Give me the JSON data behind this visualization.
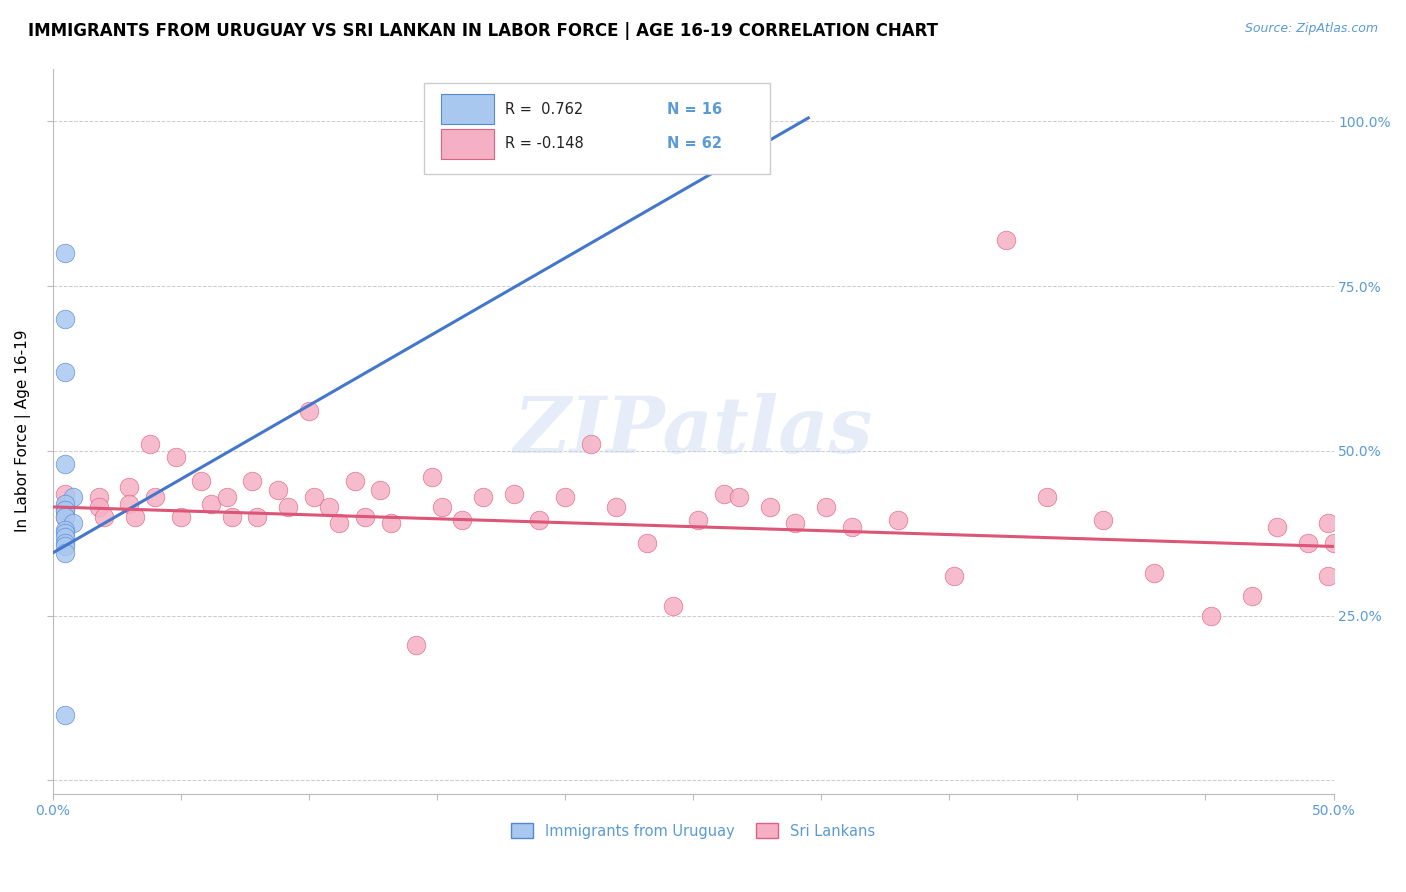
{
  "title": "IMMIGRANTS FROM URUGUAY VS SRI LANKAN IN LABOR FORCE | AGE 16-19 CORRELATION CHART",
  "source_text": "Source: ZipAtlas.com",
  "ylabel": "In Labor Force | Age 16-19",
  "xlim": [
    0.0,
    0.5
  ],
  "ylim": [
    -0.02,
    1.08
  ],
  "yticks": [
    0.0,
    0.25,
    0.5,
    0.75,
    1.0
  ],
  "yticklabels_left": [
    "",
    "",
    "",
    "",
    ""
  ],
  "yticklabels_right": [
    "",
    "25.0%",
    "50.0%",
    "75.0%",
    "100.0%"
  ],
  "xtick_positions": [
    0.0,
    0.05,
    0.1,
    0.15,
    0.2,
    0.25,
    0.3,
    0.35,
    0.4,
    0.45,
    0.5
  ],
  "xticklabels": [
    "0.0%",
    "",
    "",
    "",
    "",
    "",
    "",
    "",
    "",
    "",
    "50.0%"
  ],
  "uruguay_color": "#a8c8f0",
  "srilanka_color": "#f5b0c5",
  "uruguay_edge_color": "#5588cc",
  "srilanka_edge_color": "#e06080",
  "uruguay_line_color": "#4477cc",
  "srilanka_line_color": "#dd5577",
  "legend_R_uruguay": "R =  0.762",
  "legend_N_uruguay": "N = 16",
  "legend_R_srilanka": "R = -0.148",
  "legend_N_srilanka": "N = 62",
  "tick_color": "#5b9bd5",
  "title_fontsize": 12,
  "axis_label_fontsize": 11,
  "tick_fontsize": 10,
  "uruguay_line_x": [
    0.0,
    0.295
  ],
  "uruguay_line_y": [
    0.345,
    1.005
  ],
  "srilanka_line_x": [
    0.0,
    0.5
  ],
  "srilanka_line_y": [
    0.415,
    0.355
  ],
  "uruguay_x": [
    0.005,
    0.005,
    0.005,
    0.005,
    0.008,
    0.005,
    0.005,
    0.005,
    0.008,
    0.005,
    0.005,
    0.005,
    0.005,
    0.005,
    0.005,
    0.005
  ],
  "uruguay_y": [
    0.8,
    0.7,
    0.62,
    0.48,
    0.43,
    0.42,
    0.41,
    0.4,
    0.39,
    0.38,
    0.375,
    0.37,
    0.36,
    0.355,
    0.345,
    0.1
  ],
  "srilanka_x": [
    0.005,
    0.005,
    0.005,
    0.005,
    0.018,
    0.018,
    0.02,
    0.03,
    0.03,
    0.032,
    0.038,
    0.04,
    0.048,
    0.05,
    0.058,
    0.062,
    0.068,
    0.07,
    0.078,
    0.08,
    0.088,
    0.092,
    0.1,
    0.102,
    0.108,
    0.112,
    0.118,
    0.122,
    0.128,
    0.132,
    0.142,
    0.148,
    0.152,
    0.16,
    0.168,
    0.18,
    0.19,
    0.2,
    0.21,
    0.22,
    0.232,
    0.242,
    0.252,
    0.262,
    0.268,
    0.28,
    0.29,
    0.302,
    0.312,
    0.33,
    0.352,
    0.372,
    0.388,
    0.41,
    0.43,
    0.452,
    0.468,
    0.478,
    0.49,
    0.498,
    0.498,
    0.5
  ],
  "srilanka_y": [
    0.435,
    0.415,
    0.41,
    0.4,
    0.43,
    0.415,
    0.4,
    0.445,
    0.42,
    0.4,
    0.51,
    0.43,
    0.49,
    0.4,
    0.455,
    0.42,
    0.43,
    0.4,
    0.455,
    0.4,
    0.44,
    0.415,
    0.56,
    0.43,
    0.415,
    0.39,
    0.455,
    0.4,
    0.44,
    0.39,
    0.205,
    0.46,
    0.415,
    0.395,
    0.43,
    0.435,
    0.395,
    0.43,
    0.51,
    0.415,
    0.36,
    0.265,
    0.395,
    0.435,
    0.43,
    0.415,
    0.39,
    0.415,
    0.385,
    0.395,
    0.31,
    0.82,
    0.43,
    0.395,
    0.315,
    0.25,
    0.28,
    0.385,
    0.36,
    0.39,
    0.31,
    0.36
  ]
}
